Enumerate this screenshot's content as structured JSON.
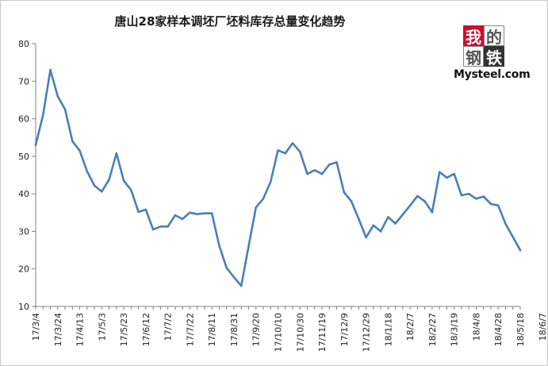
{
  "logo": {
    "glyphs": [
      "我",
      "的",
      "钢",
      "铁"
    ],
    "text": "Mysteel.com",
    "colors": {
      "red": "#c8102e",
      "dark": "#333333"
    }
  },
  "chart_data": {
    "type": "line",
    "title": "唐山28家样本调坯厂坯料库存总量变化趋势",
    "xlabel": "",
    "ylabel": "",
    "ylim": [
      10,
      80
    ],
    "yticks": [
      10,
      20,
      30,
      40,
      50,
      60,
      70,
      80
    ],
    "grid": false,
    "legend": "none",
    "line_color": "#4a7ebb",
    "xtick_labels": [
      "17/3/4",
      "17/3/24",
      "17/4/13",
      "17/5/3",
      "17/5/23",
      "17/6/12",
      "17/7/2",
      "17/7/22",
      "17/8/11",
      "17/8/31",
      "17/9/20",
      "17/10/10",
      "17/10/30",
      "17/11/19",
      "17/12/9",
      "17/12/29",
      "18/1/18",
      "18/2/7",
      "18/2/27",
      "18/3/19",
      "18/4/8",
      "18/4/28",
      "18/5/18",
      "18/6/7"
    ],
    "series": [
      {
        "name": "",
        "values": [
          53,
          61,
          73,
          66,
          62.5,
          54,
          51.5,
          46,
          42.2,
          40.6,
          43.8,
          50.8,
          43.5,
          41,
          35.2,
          35.8,
          30.5,
          31.3,
          31.3,
          34.3,
          33.3,
          35,
          34.6,
          34.8,
          34.8,
          26.2,
          20.3,
          17.8,
          15.5,
          26,
          36.4,
          38.7,
          43.2,
          51.6,
          50.8,
          53.5,
          51.2,
          45.3,
          46.3,
          45.3,
          47.8,
          48.4,
          40.4,
          38,
          33.3,
          28.4,
          31.6,
          30,
          33.8,
          32.1,
          34.5,
          36.9,
          39.4,
          38,
          35.1,
          45.8,
          44.3,
          45.3,
          39.6,
          40,
          38.7,
          39.3,
          37.3,
          36.9,
          32,
          28.5,
          25
        ]
      }
    ]
  }
}
